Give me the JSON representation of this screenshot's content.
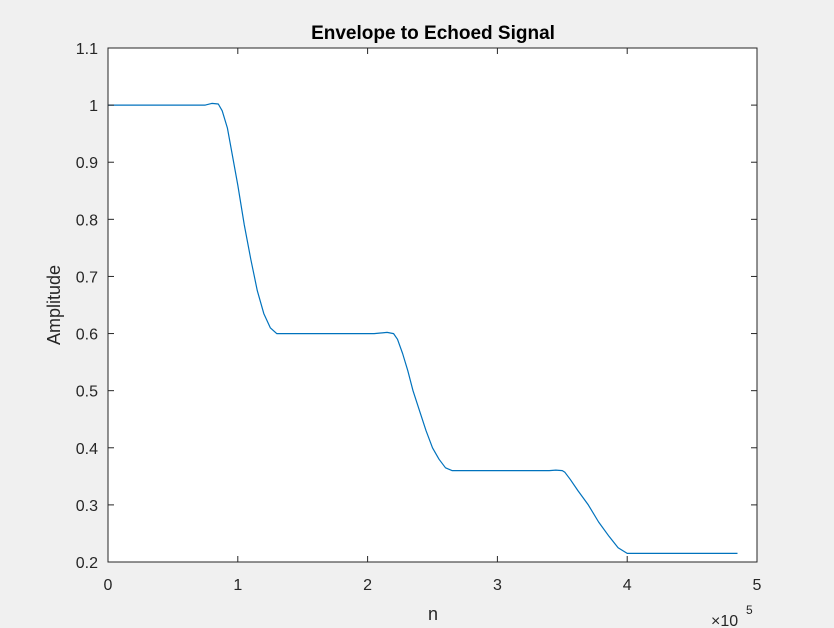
{
  "chart_data": {
    "type": "line",
    "title": "Envelope to Echoed Signal",
    "xlabel": "n",
    "ylabel": "Amplitude",
    "x_exponent_label": "×10",
    "x_exponent_power": "5",
    "xlim": [
      0,
      500000
    ],
    "ylim": [
      0.2,
      1.1
    ],
    "xticks": [
      0,
      100000,
      200000,
      300000,
      400000,
      500000
    ],
    "xtick_labels": [
      "0",
      "1",
      "2",
      "3",
      "4",
      "5"
    ],
    "yticks": [
      0.2,
      0.3,
      0.4,
      0.5,
      0.6,
      0.7,
      0.8,
      0.9,
      1.0,
      1.1
    ],
    "ytick_labels": [
      "0.2",
      "0.3",
      "0.4",
      "0.5",
      "0.6",
      "0.7",
      "0.8",
      "0.9",
      "1",
      "1.1"
    ],
    "grid": false,
    "colors": {
      "line": "#0072BD",
      "axes": "#262626",
      "plot_bg": "#ffffff",
      "figure_bg": "#f0f0f0"
    },
    "series": [
      {
        "x": [
          0,
          20000,
          40000,
          60000,
          70000,
          75000,
          80000,
          85000,
          88000,
          92000,
          96000,
          100000,
          105000,
          110000,
          115000,
          120000,
          125000,
          130000,
          135000,
          140000,
          150000,
          170000,
          190000,
          205000,
          210000,
          215000,
          220000,
          223000,
          227000,
          231000,
          235000,
          240000,
          245000,
          250000,
          255000,
          260000,
          265000,
          270000,
          275000,
          290000,
          320000,
          340000,
          345000,
          350000,
          352000,
          356000,
          362000,
          370000,
          378000,
          386000,
          393000,
          400000,
          405000,
          420000,
          450000,
          485000
        ],
        "y": [
          1.0,
          1.0,
          1.0,
          1.0,
          1.0,
          1.0,
          1.003,
          1.002,
          0.99,
          0.96,
          0.91,
          0.86,
          0.79,
          0.73,
          0.675,
          0.635,
          0.61,
          0.6,
          0.6,
          0.6,
          0.6,
          0.6,
          0.6,
          0.6,
          0.601,
          0.602,
          0.6,
          0.59,
          0.565,
          0.535,
          0.5,
          0.465,
          0.43,
          0.4,
          0.38,
          0.365,
          0.36,
          0.36,
          0.36,
          0.36,
          0.36,
          0.36,
          0.361,
          0.36,
          0.357,
          0.345,
          0.325,
          0.3,
          0.27,
          0.245,
          0.225,
          0.215,
          0.215,
          0.215,
          0.215,
          0.215
        ]
      }
    ]
  }
}
